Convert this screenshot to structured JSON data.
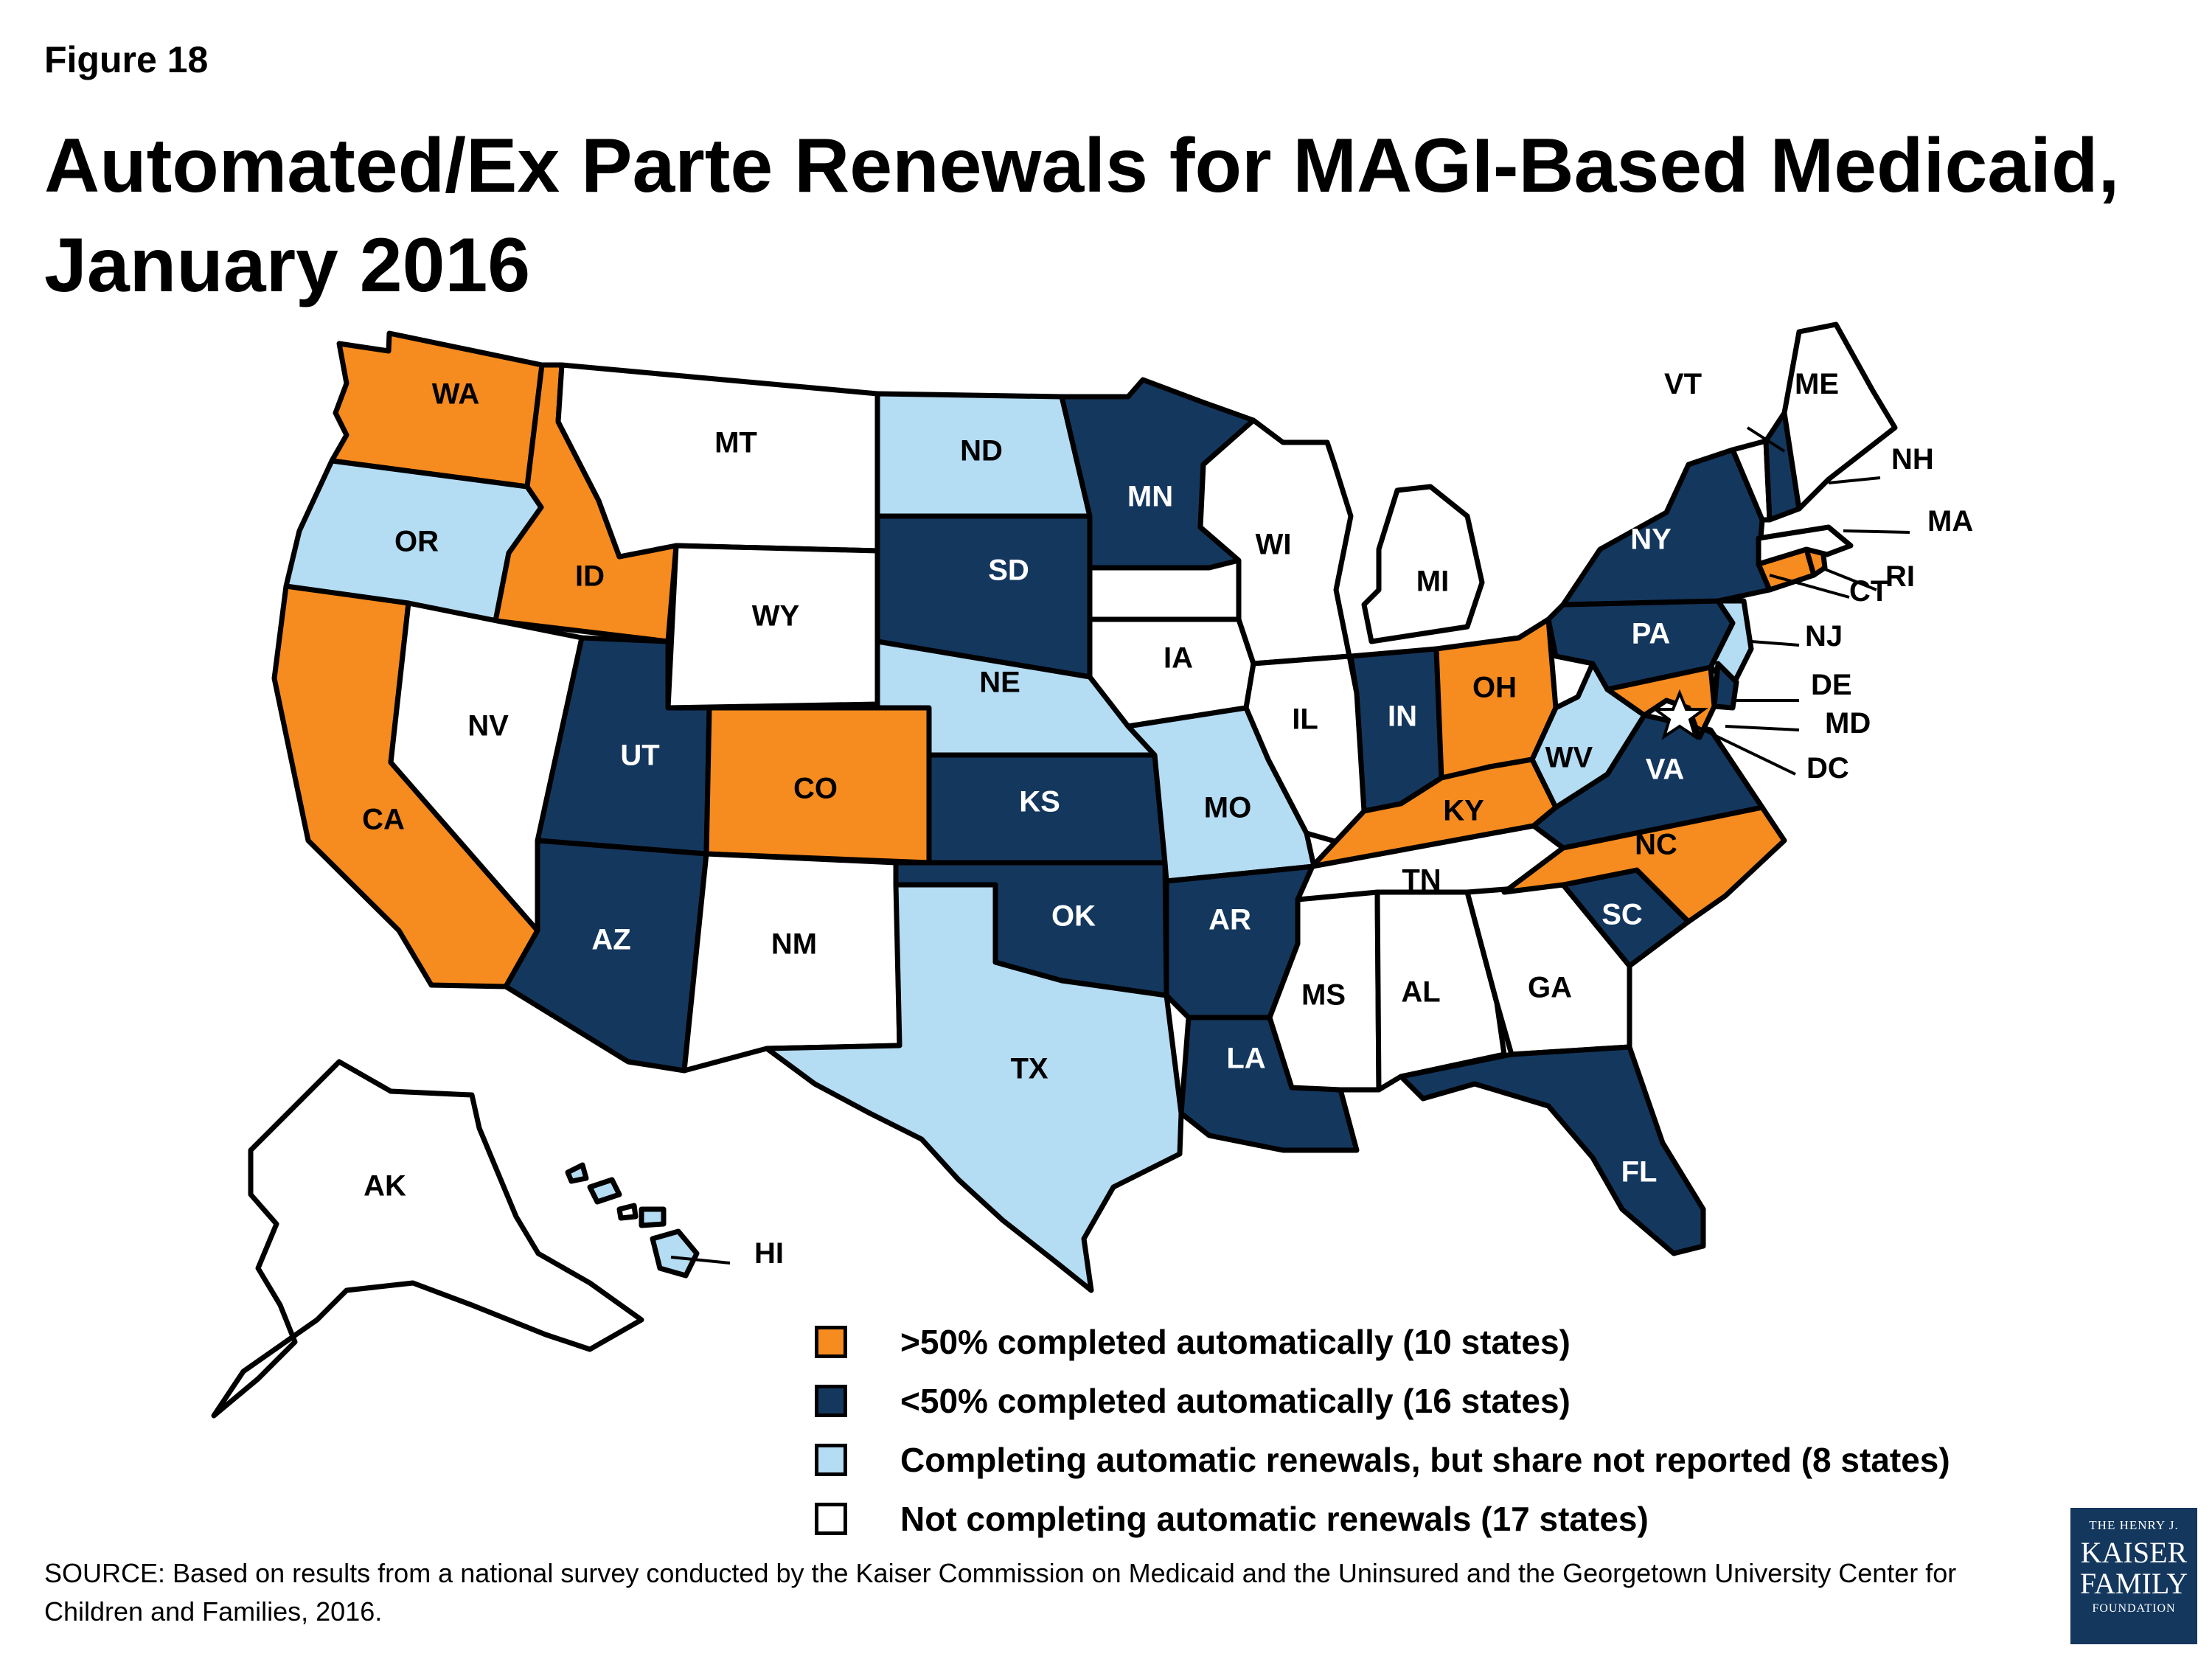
{
  "figure_label": "Figure 18",
  "title_line1": "Automated/Ex Parte Renewals for MAGI-Based Medicaid,",
  "title_line2": "January 2016",
  "colors": {
    "over50": "#f68b1f",
    "under50": "#14375e",
    "not_reported": "#b4dcf3",
    "not_completing": "#ffffff"
  },
  "states": {
    "WA": "WA",
    "OR": "OR",
    "CA": "CA",
    "ID": "ID",
    "NV": "NV",
    "MT": "MT",
    "WY": "WY",
    "UT": "UT",
    "AZ": "AZ",
    "CO": "CO",
    "NM": "NM",
    "ND": "ND",
    "SD": "SD",
    "NE": "NE",
    "KS": "KS",
    "OK": "OK",
    "TX": "TX",
    "MN": "MN",
    "IA": "IA",
    "MO": "MO",
    "AR": "AR",
    "LA": "LA",
    "WI": "WI",
    "IL": "IL",
    "MI": "MI",
    "IN": "IN",
    "OH": "OH",
    "KY": "KY",
    "TN": "TN",
    "MS": "MS",
    "AL": "AL",
    "GA": "GA",
    "FL": "FL",
    "SC": "SC",
    "NC": "NC",
    "VA": "VA",
    "WV": "WV",
    "PA": "PA",
    "NY": "NY",
    "AK": "AK",
    "HI": "HI",
    "VT": "VT",
    "ME": "ME",
    "NH": "NH",
    "MA": "MA",
    "RI": "RI",
    "CT": "CT",
    "NJ": "NJ",
    "DE": "DE",
    "MD": "MD",
    "DC": "DC"
  },
  "legend": [
    {
      "label": ">50% completed automatically (10 states)",
      "color": "#f68b1f"
    },
    {
      "label": "<50% completed automatically (16 states)",
      "color": "#14375e"
    },
    {
      "label": "Completing automatic renewals, but share not reported (8 states)",
      "color": "#b4dcf3"
    },
    {
      "label": "Not completing automatic renewals (17 states)",
      "color": "#ffffff"
    }
  ],
  "source_text": "SOURCE: Based on  results from a national survey conducted by the Kaiser Commission on Medicaid and the Uninsured and the Georgetown University Center for Children and Families, 2016.",
  "logo": {
    "line1": "THE HENRY J.",
    "line2": "KAISER",
    "line3": "FAMILY",
    "line4": "FOUNDATION"
  }
}
